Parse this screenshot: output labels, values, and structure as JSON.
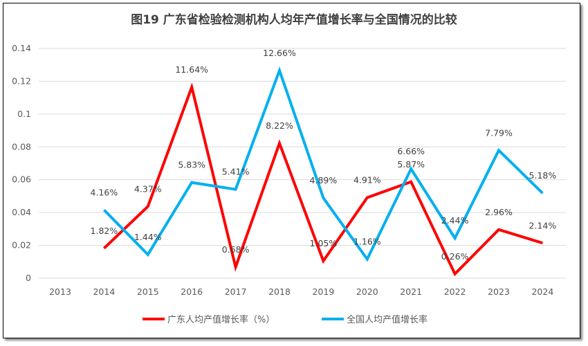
{
  "chart_data": {
    "type": "line",
    "title": "图19  广东省检验检测机构人均年产值增长率与全国情况的比较",
    "categories": [
      "2013",
      "2014",
      "2015",
      "2016",
      "2017",
      "2018",
      "2019",
      "2020",
      "2021",
      "2022",
      "2023",
      "2024"
    ],
    "ylim": [
      0,
      0.14
    ],
    "yticks": [
      "0",
      "0.02",
      "0.04",
      "0.06",
      "0.08",
      "0.1",
      "0.12",
      "0.14"
    ],
    "grid": true,
    "legend_position": "bottom",
    "series": [
      {
        "name": "广东人均产值增长率（%）",
        "color": "#FF0000",
        "values": [
          null,
          0.0182,
          0.0437,
          0.1164,
          0.0068,
          0.0822,
          0.0105,
          0.0491,
          0.0587,
          0.0026,
          0.0296,
          0.0214
        ],
        "labels": [
          null,
          "1.82%",
          "4.37%",
          "11.64%",
          "0.68%",
          "8.22%",
          "1.05%",
          "4.91%",
          "5.87%",
          "0.26%",
          "2.96%",
          "2.14%"
        ]
      },
      {
        "name": "全国人均产值增长率",
        "color": "#00B0F0",
        "values": [
          null,
          0.0416,
          0.0144,
          0.0583,
          0.0541,
          0.1266,
          0.0489,
          0.0116,
          0.0666,
          0.0244,
          0.0779,
          0.0518
        ],
        "labels": [
          null,
          "4.16%",
          "1.44%",
          "5.83%",
          "5.41%",
          "12.66%",
          "4.89%",
          "1.16%",
          "6.66%",
          "2.44%",
          "7.79%",
          "5.18%"
        ]
      }
    ]
  }
}
